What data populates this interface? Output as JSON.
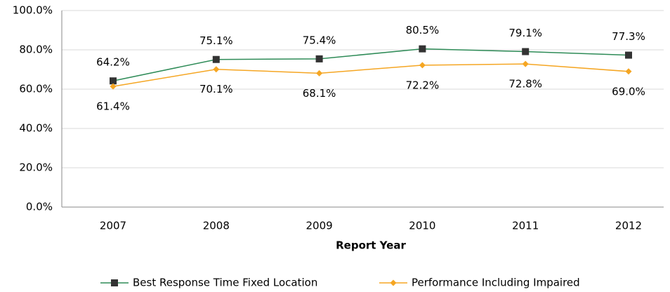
{
  "chart_data": {
    "type": "line",
    "x_label": "Report Year",
    "categories": [
      "2007",
      "2008",
      "2009",
      "2010",
      "2011",
      "2012"
    ],
    "series": [
      {
        "name": "Best Response Time Fixed Location",
        "color": "#2e8b57",
        "marker_color": "#333333",
        "values": [
          64.2,
          75.1,
          75.4,
          80.5,
          79.1,
          77.3
        ],
        "value_labels": [
          "64.2%",
          "75.1%",
          "75.4%",
          "80.5%",
          "79.1%",
          "77.3%"
        ]
      },
      {
        "name": "Performance Including Impaired",
        "color": "#f5a623",
        "marker_color": "#f5a623",
        "values": [
          61.4,
          70.1,
          68.1,
          72.2,
          72.8,
          69.0
        ],
        "value_labels": [
          "61.4%",
          "70.1%",
          "68.1%",
          "72.2%",
          "72.8%",
          "69.0%"
        ]
      }
    ],
    "ylim": [
      0,
      100
    ],
    "yticks": [
      {
        "value": 0,
        "label": "0.0%"
      },
      {
        "value": 20,
        "label": "20.0%"
      },
      {
        "value": 40,
        "label": "40.0%"
      },
      {
        "value": 60,
        "label": "60.0%"
      },
      {
        "value": 80,
        "label": "80.0%"
      },
      {
        "value": 100,
        "label": "100.0%"
      }
    ],
    "grid": true,
    "legend": "bottom"
  }
}
